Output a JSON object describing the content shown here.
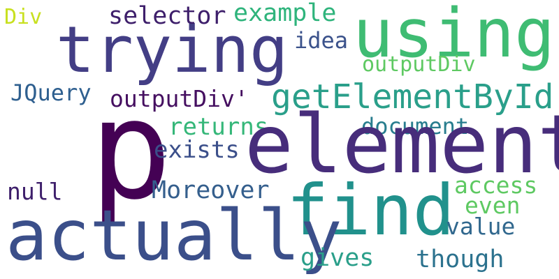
{
  "words": {
    "p": "p",
    "element": "element",
    "actually": "actually",
    "find": "find",
    "trying": "trying",
    "using": "using",
    "getElementById": "getElementById",
    "selector": "selector",
    "example": "example",
    "div": "Div",
    "idea": "idea",
    "outputDiv": "outputDiv",
    "jquery": "JQuery",
    "outputDivQuote": "outputDiv'",
    "returns": "returns",
    "document": "document",
    "exists": "exists",
    "null": "null",
    "moreover": "Moreover",
    "access": "access",
    "even": "even",
    "value": "value",
    "gives": "gives",
    "though": "though"
  },
  "palette": [
    "#440154",
    "#472d7b",
    "#3b528b",
    "#2c728e",
    "#21918c",
    "#28ae80",
    "#5ec962",
    "#c8e020"
  ]
}
